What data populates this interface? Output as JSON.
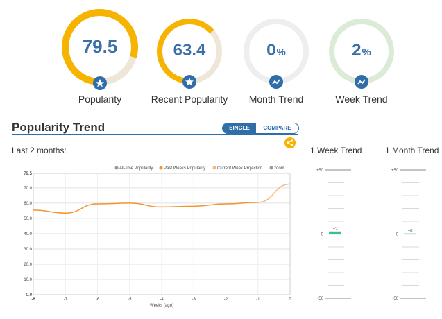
{
  "gauges": [
    {
      "value": "79.5",
      "suffix": "",
      "label": "Popularity",
      "fraction": 0.795,
      "badge": "star-icon"
    },
    {
      "value": "63.4",
      "suffix": "",
      "label": "Recent Popularity",
      "fraction": 0.634,
      "badge": "star-icon"
    },
    {
      "value": "0",
      "suffix": "%",
      "label": "Month Trend",
      "fraction": 0,
      "badge": "trend-icon"
    },
    {
      "value": "2",
      "suffix": "%",
      "label": "Week Trend",
      "fraction": 0.02,
      "badge": "trend-icon"
    }
  ],
  "section": {
    "title": "Popularity Trend",
    "toggle_single": "SINGLE",
    "toggle_compare": "COMPARE",
    "range_label": "Last 2 months:"
  },
  "colors": {
    "accent": "#f6b400",
    "blue": "#2f6ea8",
    "line": "#f0952f",
    "projection": "#f7b779",
    "green": "#3dbd8d"
  },
  "chart_data": {
    "type": "line",
    "legend": [
      "All-time Popularity",
      "Past Weeks Popularity",
      "Current Week Projection",
      "zoom"
    ],
    "xlabel": "Weeks (ago)",
    "x": [
      -8,
      -7,
      -6,
      -5,
      -4,
      -3,
      -2,
      -1,
      0
    ],
    "x_ticks": [
      "-8",
      "-7",
      "-6",
      "-5",
      "-4",
      "-3",
      "-2",
      "-1",
      "0"
    ],
    "y_ticks": [
      "0.0",
      "10.0",
      "20.0",
      "30.0",
      "40.0",
      "50.0",
      "60.0",
      "70.0",
      "79.5"
    ],
    "ylim": [
      0,
      79.5
    ],
    "series": [
      {
        "name": "Past Weeks Popularity",
        "x": [
          -8,
          -7,
          -6,
          -5,
          -4,
          -3,
          -2,
          -1
        ],
        "values": [
          55.5,
          53.5,
          59.5,
          60,
          57.5,
          58,
          59.5,
          60.5
        ]
      },
      {
        "name": "Current Week Projection",
        "x": [
          -1,
          0
        ],
        "values": [
          60.5,
          72.5
        ]
      }
    ]
  },
  "mini_charts": [
    {
      "title": "1 Week Trend",
      "top": "+50",
      "mid": "0",
      "bottom": "-50",
      "value": 2,
      "value_label": "+2"
    },
    {
      "title": "1 Month Trend",
      "top": "+50",
      "mid": "0",
      "bottom": "-50",
      "value": 0,
      "value_label": "+0"
    }
  ]
}
